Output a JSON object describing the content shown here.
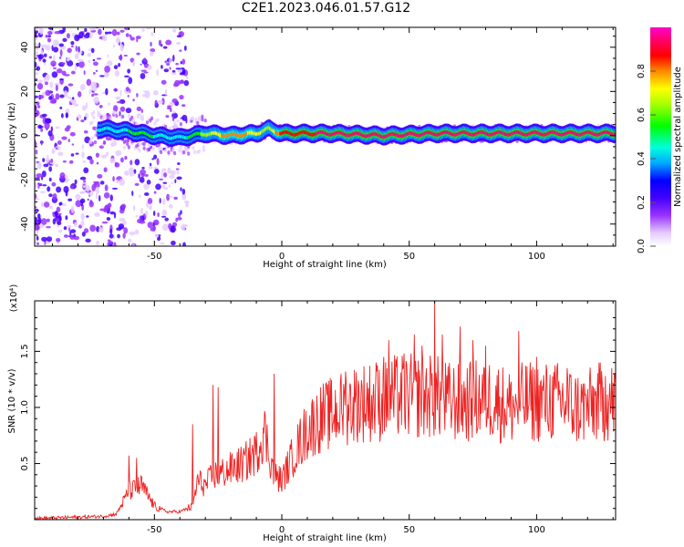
{
  "title": "C2E1.2023.046.01.57.G12",
  "chart_data": [
    {
      "type": "heatmap",
      "xlabel": "Height of straight line (km)",
      "ylabel": "Frequency (Hz)",
      "xlim": [
        -97,
        131
      ],
      "ylim": [
        -50,
        49
      ],
      "xticks": [
        -50,
        0,
        50,
        100
      ],
      "yticks": [
        -40,
        -20,
        0,
        20,
        40
      ],
      "colorbar": {
        "label": "Normalized spectral amplitude",
        "range": [
          0,
          1
        ],
        "ticks": [
          0.0,
          0.2,
          0.4,
          0.6,
          0.8
        ],
        "colormap": [
          "#ffffff",
          "#e6ccff",
          "#9933ff",
          "#4400ff",
          "#0000ff",
          "#00aaff",
          "#00ffdd",
          "#00ff00",
          "#aaff00",
          "#ffff00",
          "#ff8800",
          "#ff0000",
          "#ff0066",
          "#ff00cc"
        ]
      },
      "ridge": {
        "description_points_x": [
          -70,
          -60,
          -50,
          -40,
          -30,
          -20,
          -10,
          -5,
          0,
          20,
          40,
          60,
          80,
          100,
          131
        ],
        "frequency": [
          3,
          2,
          0,
          -1,
          1,
          0,
          1,
          3,
          1,
          1,
          0,
          1,
          1,
          1,
          1
        ],
        "peak_amplitude": [
          0.45,
          0.5,
          0.5,
          0.45,
          0.6,
          0.8,
          0.7,
          0.6,
          0.85,
          0.9,
          0.9,
          0.9,
          0.9,
          0.9,
          0.9
        ]
      }
    },
    {
      "type": "line",
      "xlabel": "Height of straight line (km)",
      "ylabel": "SNR (10 * v/v)",
      "y_multiplier": "(x10⁴)",
      "xlim": [
        -97,
        131
      ],
      "ylim": [
        0,
        1.95
      ],
      "xticks": [
        -50,
        0,
        50,
        100
      ],
      "yticks": [
        0.5,
        1.0,
        1.5
      ],
      "series": [
        {
          "color": "#ee2222",
          "envelope_x": [
            -97,
            -70,
            -65,
            -60,
            -55,
            -50,
            -45,
            -40,
            -35,
            -33,
            -30,
            -27,
            -25,
            -20,
            -15,
            -10,
            -7,
            -5,
            -3,
            0,
            5,
            10,
            15,
            20,
            25,
            30,
            35,
            40,
            45,
            50,
            55,
            60,
            65,
            70,
            75,
            80,
            85,
            90,
            95,
            100,
            105,
            110,
            115,
            120,
            125,
            131
          ],
          "envelope_y": [
            0.01,
            0.03,
            0.05,
            0.25,
            0.3,
            0.12,
            0.07,
            0.07,
            0.12,
            0.35,
            0.3,
            0.4,
            0.4,
            0.45,
            0.5,
            0.6,
            0.8,
            0.6,
            0.4,
            0.35,
            0.6,
            0.8,
            0.9,
            0.95,
            1.0,
            1.05,
            1.05,
            1.05,
            1.1,
            1.1,
            1.1,
            1.1,
            1.05,
            1.05,
            1.05,
            1.1,
            1.05,
            1.0,
            1.05,
            1.05,
            1.05,
            1.05,
            1.0,
            1.0,
            1.05,
            1.05
          ],
          "spikes": [
            {
              "x": -60,
              "y": 0.57
            },
            {
              "x": -57,
              "y": 0.55
            },
            {
              "x": -35,
              "y": 0.85
            },
            {
              "x": -27,
              "y": 1.2
            },
            {
              "x": -25,
              "y": 1.18
            },
            {
              "x": -3,
              "y": 1.3
            },
            {
              "x": 25,
              "y": 1.32
            },
            {
              "x": 37,
              "y": 1.4
            },
            {
              "x": 40,
              "y": 1.45
            },
            {
              "x": 42,
              "y": 1.6
            },
            {
              "x": 48,
              "y": 1.48
            },
            {
              "x": 52,
              "y": 1.65
            },
            {
              "x": 55,
              "y": 1.55
            },
            {
              "x": 60,
              "y": 1.95
            },
            {
              "x": 63,
              "y": 1.65
            },
            {
              "x": 70,
              "y": 1.72
            },
            {
              "x": 75,
              "y": 1.6
            },
            {
              "x": 80,
              "y": 1.55
            },
            {
              "x": 93,
              "y": 1.68
            },
            {
              "x": 100,
              "y": 1.45
            },
            {
              "x": 112,
              "y": 1.35
            },
            {
              "x": 127,
              "y": 1.28
            }
          ]
        }
      ]
    }
  ]
}
